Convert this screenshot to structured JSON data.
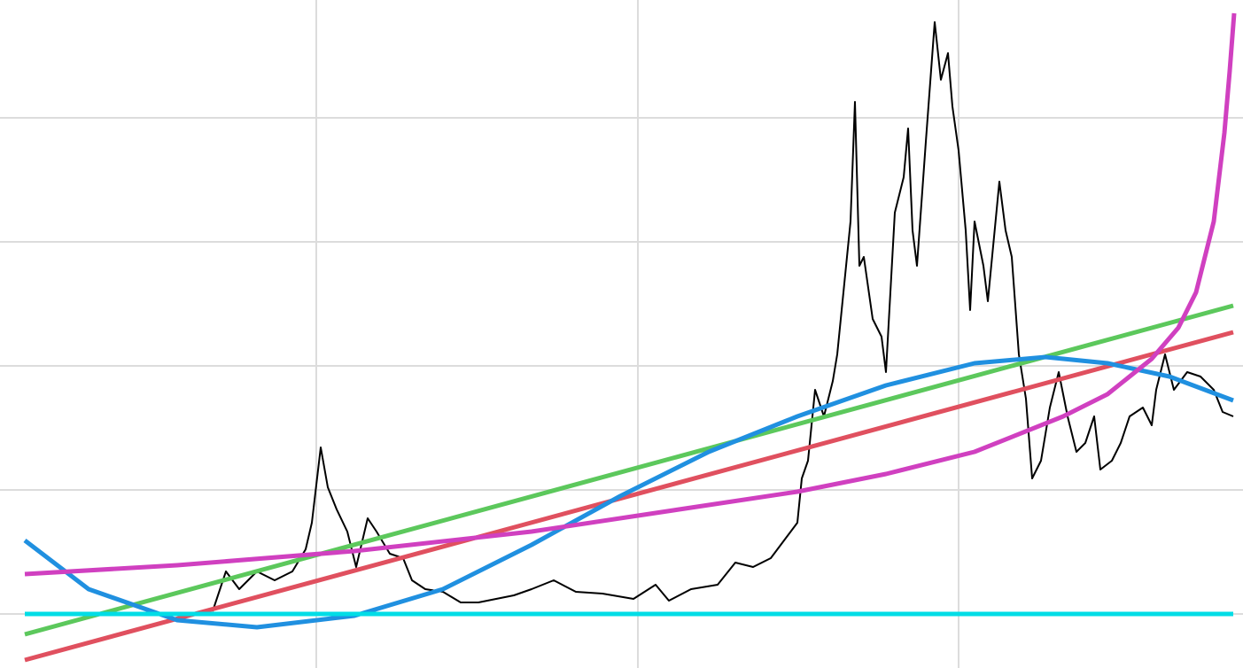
{
  "chart_data": {
    "type": "line",
    "xlim": [
      0,
      1403
    ],
    "ylim": [
      0,
      754
    ],
    "xticks": [
      357,
      720,
      1082
    ],
    "yticks": [
      61,
      201,
      341,
      481,
      621
    ],
    "grid": true,
    "series": [
      {
        "color": "#000000",
        "x": [
          240,
          255,
          270,
          290,
          310,
          330,
          345,
          352,
          362,
          370,
          380,
          392,
          402,
          415,
          425,
          440,
          455,
          465,
          480,
          500,
          520,
          540,
          580,
          600,
          625,
          650,
          680,
          715,
          740,
          755,
          780,
          810,
          830,
          850,
          870,
          885,
          900,
          905,
          912,
          920,
          930,
          940,
          945,
          950,
          960,
          965,
          970,
          975,
          985,
          995,
          1000,
          1010,
          1020,
          1025,
          1030,
          1035,
          1040,
          1045,
          1055,
          1062,
          1070,
          1075,
          1082,
          1090,
          1095,
          1100,
          1110,
          1115,
          1128,
          1135,
          1142,
          1150,
          1158,
          1165,
          1175,
          1185,
          1195,
          1205,
          1215,
          1225,
          1235,
          1242,
          1255,
          1265,
          1275,
          1290,
          1300,
          1305,
          1315,
          1325,
          1340,
          1355,
          1370,
          1380,
          1392
        ],
        "values": [
          64,
          109,
          89,
          109,
          99,
          109,
          134,
          164,
          249,
          204,
          179,
          154,
          114,
          169,
          154,
          129,
          124,
          99,
          89,
          86,
          74,
          74,
          82,
          89,
          99,
          86,
          84,
          78,
          94,
          76,
          89,
          94,
          119,
          114,
          124,
          144,
          164,
          214,
          234,
          314,
          284,
          324,
          354,
          404,
          504,
          639,
          454,
          464,
          394,
          374,
          334,
          514,
          554,
          609,
          494,
          454,
          524,
          594,
          729,
          664,
          694,
          634,
          584,
          494,
          404,
          504,
          454,
          414,
          549,
          494,
          464,
          354,
          304,
          214,
          234,
          294,
          334,
          284,
          244,
          254,
          284,
          224,
          234,
          254,
          284,
          294,
          274,
          314,
          354,
          314,
          334,
          329,
          314,
          289,
          284
        ]
      },
      {
        "color": "#e0505f",
        "x": [
          28,
          1392
        ],
        "values": [
          9,
          379
        ]
      },
      {
        "color": "#5cc85c",
        "x": [
          28,
          1392
        ],
        "values": [
          38,
          409
        ]
      },
      {
        "color": "#2090e0",
        "x": [
          28,
          100,
          200,
          290,
          400,
          500,
          600,
          700,
          800,
          900,
          1000,
          1100,
          1180,
          1250,
          1320,
          1392
        ],
        "values": [
          144,
          89,
          54,
          46,
          59,
          89,
          139,
          194,
          244,
          284,
          319,
          344,
          351,
          344,
          329,
          302
        ]
      },
      {
        "color": "#d040c0",
        "x": [
          28,
          200,
          400,
          600,
          800,
          900,
          1000,
          1100,
          1200,
          1250,
          1300,
          1330,
          1350,
          1370,
          1382,
          1388,
          1393
        ],
        "values": [
          106,
          116,
          132,
          154,
          184,
          199,
          219,
          244,
          284,
          309,
          349,
          384,
          424,
          504,
          604,
          674,
          739
        ]
      },
      {
        "color": "#00dde6",
        "x": [
          28,
          1392
        ],
        "values": [
          61,
          61
        ]
      }
    ]
  }
}
